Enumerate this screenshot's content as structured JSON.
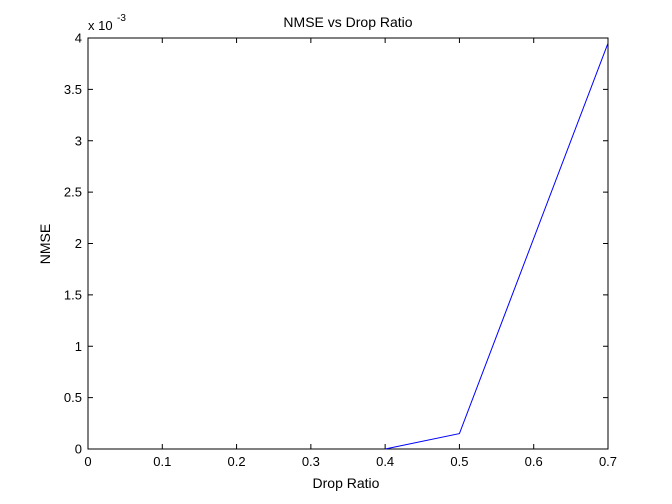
{
  "chart_data": {
    "type": "line",
    "title": "NMSE vs Drop Ratio",
    "xlabel": "Drop Ratio",
    "ylabel": "NMSE",
    "y_exponent_label": "x 10",
    "y_exponent_power": "-3",
    "xlim": [
      0,
      0.7
    ],
    "ylim": [
      0,
      4
    ],
    "x_ticks": [
      "0",
      "0.1",
      "0.2",
      "0.3",
      "0.4",
      "0.5",
      "0.6",
      "0.7"
    ],
    "y_ticks": [
      "0",
      "0.5",
      "1",
      "1.5",
      "2",
      "2.5",
      "3",
      "3.5",
      "4"
    ],
    "grid": false,
    "series": [
      {
        "color": "#0000ff",
        "x": [
          0.4,
          0.5,
          0.7
        ],
        "y": [
          0,
          0.15,
          3.95
        ]
      }
    ]
  }
}
